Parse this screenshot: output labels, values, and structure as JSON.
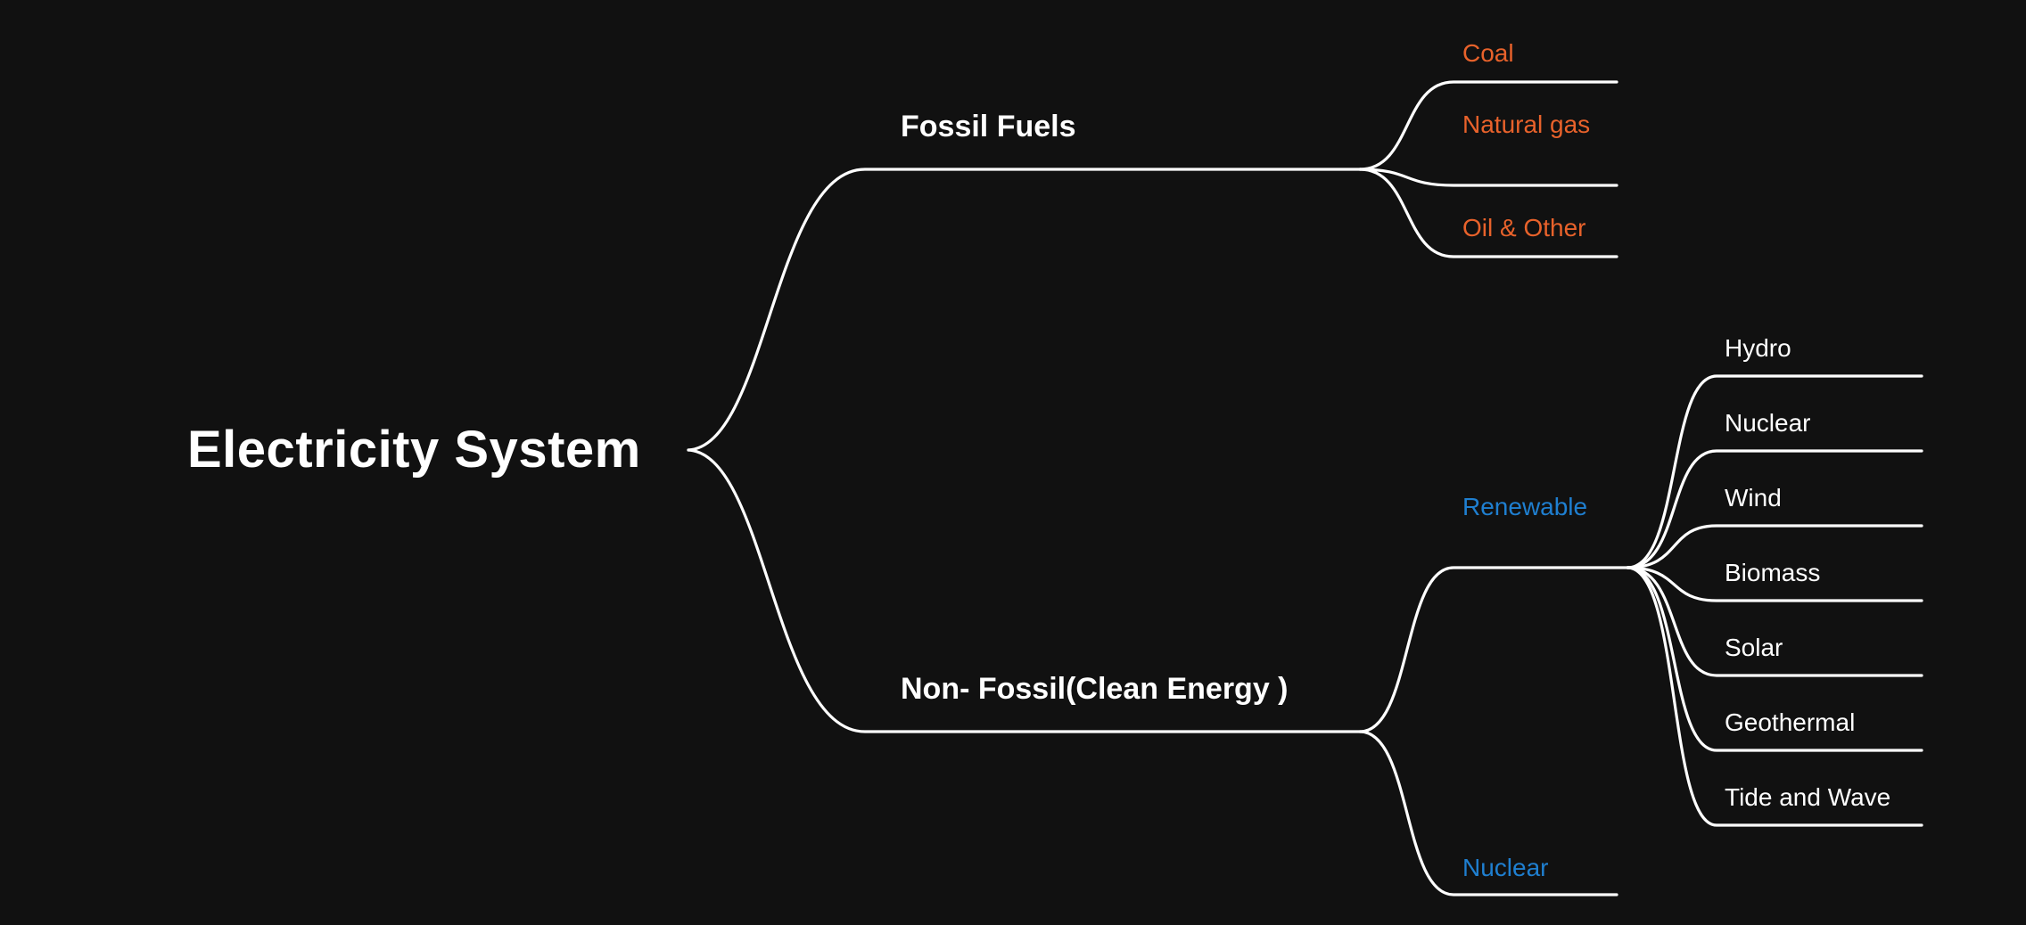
{
  "root": {
    "label": "Electricity System"
  },
  "fossil": {
    "label": "Fossil Fuels",
    "color": "#e8622b",
    "items": [
      {
        "label": "Coal"
      },
      {
        "label": "Natural gas"
      },
      {
        "label": "Oil & Other"
      }
    ]
  },
  "clean": {
    "label": "Non- Fossil(Clean Energy )",
    "color": "#1f7fd0",
    "renewable": {
      "label": "Renewable",
      "items": [
        {
          "label": "Hydro"
        },
        {
          "label": "Nuclear"
        },
        {
          "label": "Wind"
        },
        {
          "label": "Biomass"
        },
        {
          "label": "Solar"
        },
        {
          "label": "Geothermal"
        },
        {
          "label": "Tide and Wave"
        }
      ]
    },
    "nuclear": {
      "label": "Nuclear"
    }
  },
  "colors": {
    "background": "#111111",
    "lines": "#ffffff"
  }
}
